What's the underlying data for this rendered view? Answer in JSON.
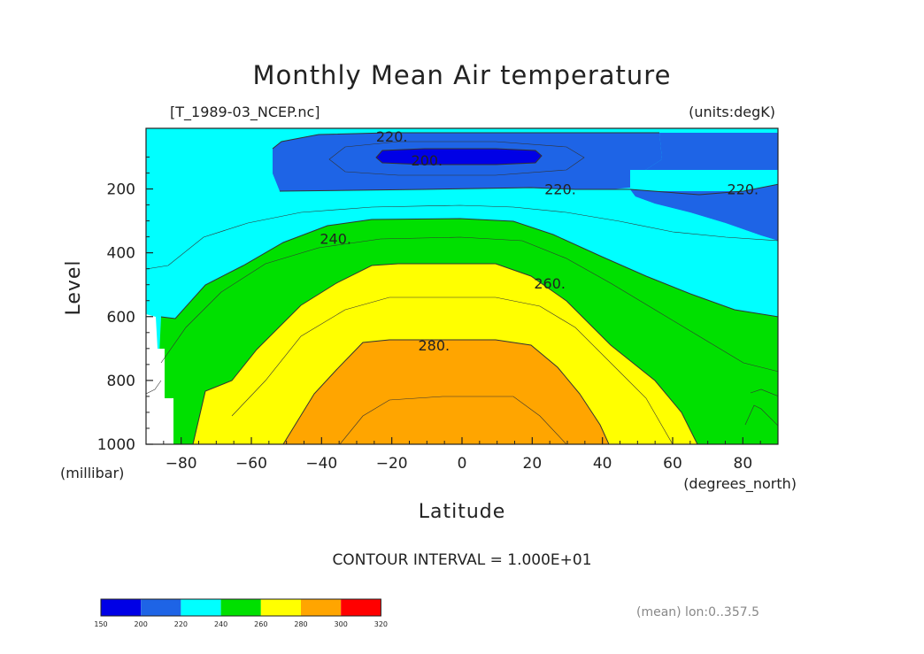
{
  "chart_data": {
    "type": "contour",
    "title": "Monthly Mean Air temperature",
    "dataset": "[T_1989-03_NCEP.nc]",
    "units": "(units:degK)",
    "xlabel": "Latitude",
    "xunits": "(degrees_north)",
    "ylabel": "Level",
    "yunits": "(millibar)",
    "xlim": [
      -90,
      90
    ],
    "ylim": [
      1000,
      10
    ],
    "x_ticks": [
      -80,
      -60,
      -40,
      -20,
      0,
      20,
      40,
      60,
      80
    ],
    "y_ticks": [
      200,
      400,
      600,
      800,
      1000
    ],
    "contour_interval_text": "CONTOUR INTERVAL = 1.000E+01",
    "footer": "(mean) lon:0..357.5",
    "contour_labels": [
      {
        "text": "200.",
        "lat": -10,
        "level": 110
      },
      {
        "text": "220.",
        "lat": -20,
        "level": 35
      },
      {
        "text": "220.",
        "lat": 28,
        "level": 200
      },
      {
        "text": "220.",
        "lat": 80,
        "level": 200
      },
      {
        "text": "240.",
        "lat": -36,
        "level": 355
      },
      {
        "text": "260.",
        "lat": 25,
        "level": 495
      },
      {
        "text": "280.",
        "lat": -8,
        "level": 690
      }
    ],
    "colorbar": {
      "ticks": [
        "150",
        "200",
        "220",
        "240",
        "260",
        "280",
        "300",
        "320"
      ],
      "colors": [
        "#0000e6",
        "#1e64e6",
        "#00ffff",
        "#00e000",
        "#ffff00",
        "#ffa500",
        "#ff0000"
      ]
    },
    "bands": [
      {
        "range": "200-220",
        "color": "#1e64e6"
      },
      {
        "range": "<200",
        "color": "#0000e6"
      },
      {
        "range": "220-240",
        "color": "#00ffff"
      },
      {
        "range": "240-260",
        "color": "#00e000"
      },
      {
        "range": "260-280",
        "color": "#ffff00"
      },
      {
        "range": "280-300",
        "color": "#ffa500"
      }
    ]
  }
}
